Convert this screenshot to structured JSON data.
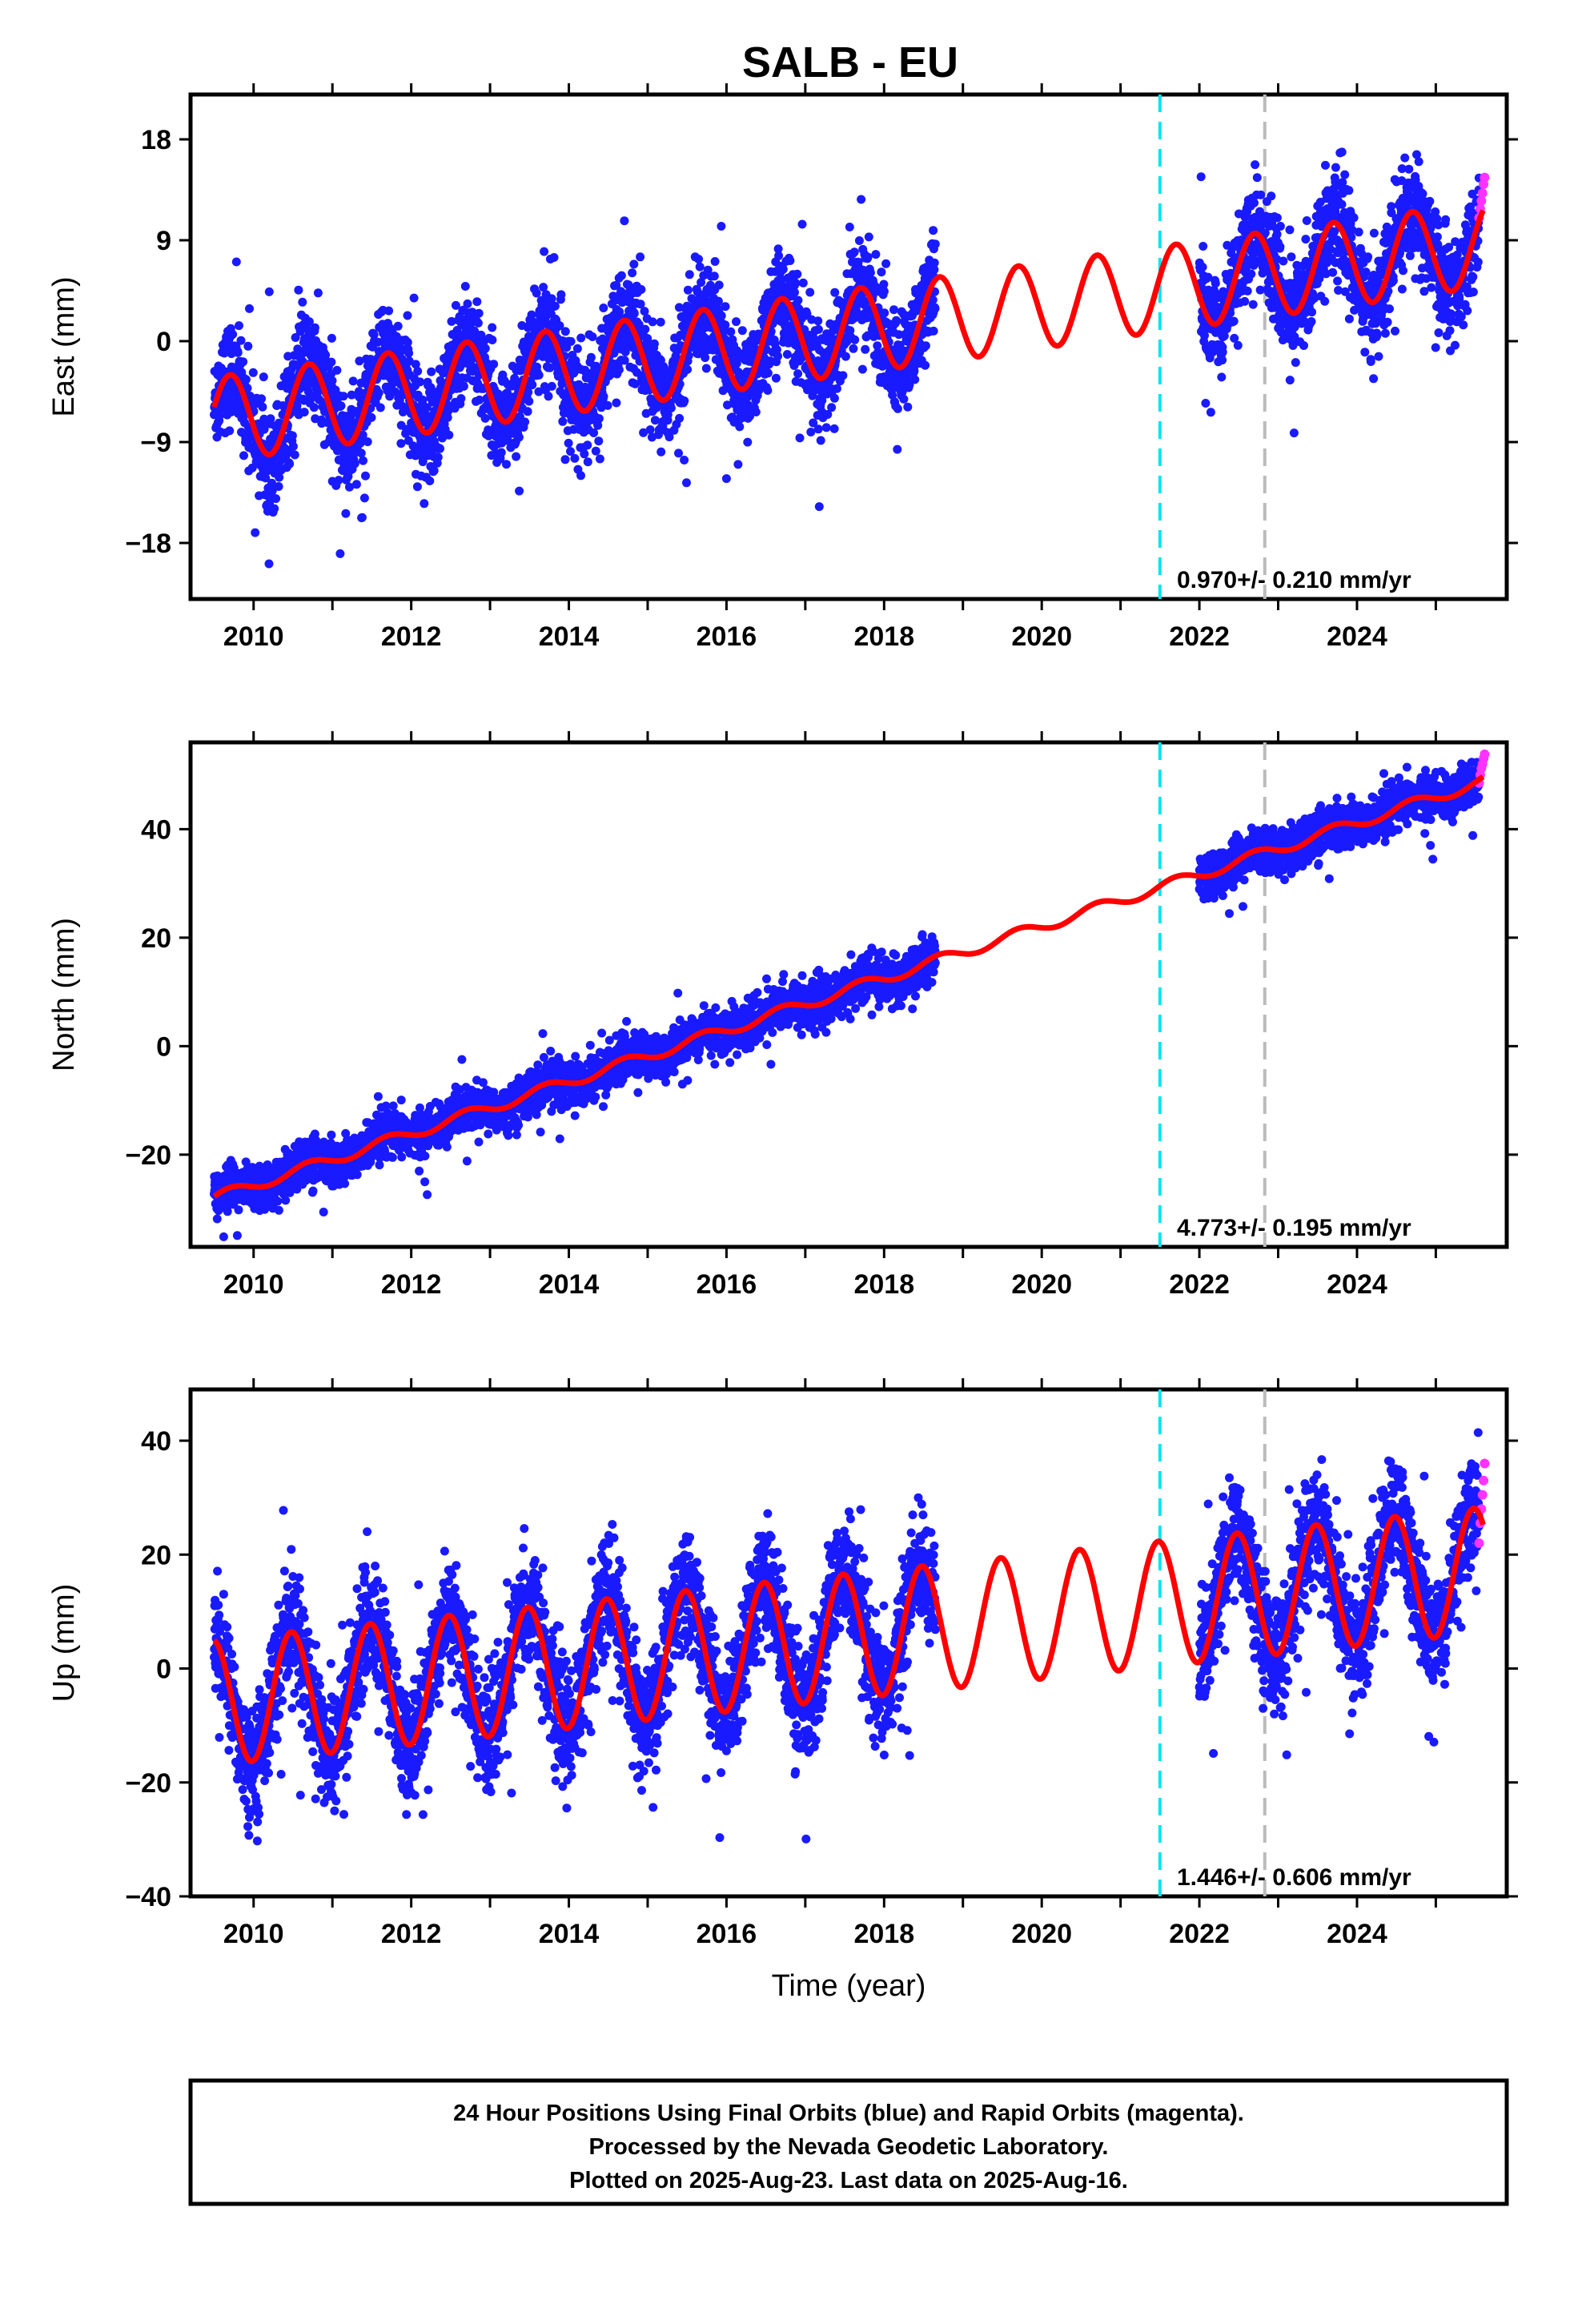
{
  "figure": {
    "title": "SALB - EU",
    "xlabel": "Time (year)",
    "footer": [
      "24 Hour Positions Using Final Orbits (blue) and Rapid Orbits (magenta).",
      "Processed by the Nevada Geodetic Laboratory.",
      "Plotted on 2025-Aug-23. Last data on 2025-Aug-16."
    ],
    "colors": {
      "final_orbits": "#1a1aff",
      "rapid_orbits": "#ff33ff",
      "model": "#ff0000",
      "antenna_change": "#00e5ee",
      "equipment_change": "#bbbbbb"
    }
  },
  "chart_data": [
    {
      "type": "scatter",
      "panel": "east",
      "ylabel": "East (mm)",
      "xlim": [
        2009.2,
        2025.9
      ],
      "ylim": [
        -23,
        22
      ],
      "xticks": [
        2010,
        2012,
        2014,
        2016,
        2018,
        2020,
        2022,
        2024
      ],
      "yticks": [
        -18,
        -9,
        0,
        9,
        18
      ],
      "rate_label": "0.970+/- 0.210 mm/yr",
      "event_lines": {
        "cyan": 2021.5,
        "gray": 2022.83
      },
      "series": [
        {
          "name": "Final Orbits (blue)",
          "segments": [
            [
              2009.5,
              2018.65
            ],
            [
              2022.0,
              2025.55
            ]
          ],
          "trend": {
            "intercept": -7.0,
            "slope": 0.97,
            "amplitude": 3.8,
            "noise": 2.2,
            "offset_after_2021_5": 0
          }
        },
        {
          "name": "Rapid Orbits (magenta)",
          "x_range": [
            2025.55,
            2025.62
          ],
          "values": [
            11.0,
            11.8,
            12.5,
            13.2,
            14.0,
            14.6
          ]
        }
      ],
      "model": {
        "intercept": -7.0,
        "slope": 0.97,
        "amplitude": 3.8
      }
    },
    {
      "type": "scatter",
      "panel": "north",
      "ylabel": "North (mm)",
      "xlim": [
        2009.2,
        2025.9
      ],
      "ylim": [
        -37,
        56
      ],
      "xticks": [
        2010,
        2012,
        2014,
        2016,
        2018,
        2020,
        2022,
        2024
      ],
      "yticks": [
        -20,
        0,
        20,
        40
      ],
      "rate_label": "4.773+/- 0.195 mm/yr",
      "event_lines": {
        "cyan": 2021.5,
        "gray": 2022.83
      },
      "series": [
        {
          "name": "Final Orbits (blue)",
          "segments": [
            [
              2009.5,
              2018.65
            ],
            [
              2022.0,
              2025.55
            ]
          ],
          "trend": {
            "intercept": -28.0,
            "slope": 4.773,
            "amplitude": 1.0,
            "noise": 2.0,
            "offset_after_2021_5": 0
          }
        },
        {
          "name": "Rapid Orbits (magenta)",
          "x_range": [
            2025.55,
            2025.62
          ],
          "values": [
            48.5,
            50.0,
            51.2,
            52.0,
            53.0,
            53.8
          ]
        }
      ],
      "model": {
        "intercept": -28.0,
        "slope": 4.773,
        "amplitude": 1.0
      }
    },
    {
      "type": "scatter",
      "panel": "up",
      "ylabel": "Up (mm)",
      "xlim": [
        2009.2,
        2025.9
      ],
      "ylim": [
        -40,
        49
      ],
      "xticks": [
        2010,
        2012,
        2014,
        2016,
        2018,
        2020,
        2022,
        2024
      ],
      "yticks": [
        -40,
        -20,
        0,
        20,
        40
      ],
      "rate_label": "1.446+/- 0.606 mm/yr",
      "event_lines": {
        "cyan": 2021.5,
        "gray": 2022.83
      },
      "series": [
        {
          "name": "Final Orbits (blue)",
          "segments": [
            [
              2009.5,
              2018.65
            ],
            [
              2022.0,
              2025.55
            ]
          ],
          "trend": {
            "intercept": -6.0,
            "slope": 1.446,
            "amplitude": 11.0,
            "noise": 5.0,
            "offset_after_2021_5": 0
          }
        },
        {
          "name": "Rapid Orbits (magenta)",
          "x_range": [
            2025.55,
            2025.62
          ],
          "values": [
            22.0,
            25.5,
            28.0,
            30.5,
            33.0,
            36.0
          ]
        }
      ],
      "model": {
        "intercept": -6.0,
        "slope": 1.446,
        "amplitude": 11.0
      }
    }
  ]
}
